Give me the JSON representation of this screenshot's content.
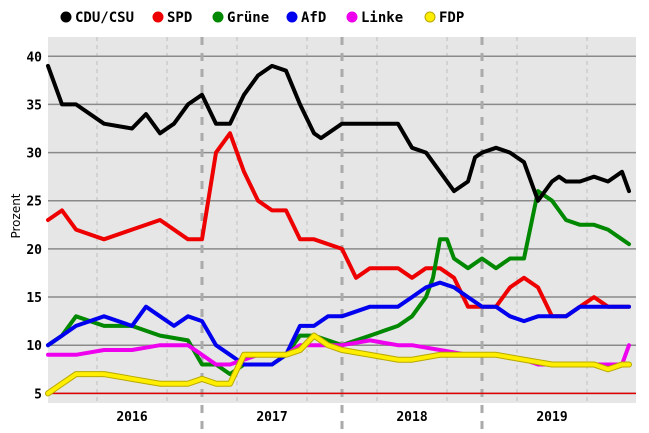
{
  "chart_data": {
    "type": "line",
    "title": "",
    "xlabel": "",
    "ylabel": "Prozent",
    "ylim": [
      4,
      42
    ],
    "yticks": [
      5,
      10,
      15,
      20,
      25,
      30,
      35,
      40
    ],
    "xlim": [
      2015.4,
      2019.6
    ],
    "year_labels": [
      {
        "label": "2016",
        "center": 2016.0
      },
      {
        "label": "2017",
        "center": 2017.0
      },
      {
        "label": "2018",
        "center": 2018.0
      },
      {
        "label": "2019",
        "center": 2019.0
      }
    ],
    "year_boundaries": [
      2016.5,
      2017.5,
      2018.5
    ],
    "quarter_ticks": [
      2015.75,
      2016.25,
      2016.75,
      2017.25,
      2017.75,
      2018.25,
      2018.75,
      2019.25
    ],
    "threshold": {
      "value": 5,
      "color": "#e00000"
    },
    "legend_position": "top-left",
    "series": [
      {
        "name": "CDU/CSU",
        "color": "#000000",
        "x": [
          2015.4,
          2015.5,
          2015.6,
          2015.8,
          2016.0,
          2016.1,
          2016.2,
          2016.3,
          2016.4,
          2016.5,
          2016.6,
          2016.7,
          2016.8,
          2016.9,
          2017.0,
          2017.1,
          2017.2,
          2017.3,
          2017.35,
          2017.5,
          2017.7,
          2017.9,
          2018.0,
          2018.1,
          2018.2,
          2018.3,
          2018.4,
          2018.45,
          2018.5,
          2018.6,
          2018.7,
          2018.8,
          2018.9,
          2019.0,
          2019.05,
          2019.1,
          2019.2,
          2019.3,
          2019.4,
          2019.5,
          2019.55
        ],
        "y": [
          39,
          35,
          35,
          33,
          32.5,
          34,
          32,
          33,
          35,
          36,
          33,
          33,
          36,
          38,
          39,
          38.5,
          35,
          32,
          31.5,
          33,
          33,
          33,
          30.5,
          30,
          28,
          26,
          27,
          29.5,
          30,
          30.5,
          30,
          29,
          25,
          27,
          27.5,
          27,
          27,
          27.5,
          27,
          28,
          26
        ]
      },
      {
        "name": "SPD",
        "color": "#ee0000",
        "x": [
          2015.4,
          2015.5,
          2015.6,
          2015.8,
          2016.0,
          2016.2,
          2016.4,
          2016.5,
          2016.6,
          2016.7,
          2016.8,
          2016.9,
          2017.0,
          2017.1,
          2017.2,
          2017.3,
          2017.5,
          2017.6,
          2017.7,
          2017.9,
          2018.0,
          2018.1,
          2018.2,
          2018.3,
          2018.4,
          2018.5,
          2018.6,
          2018.7,
          2018.8,
          2018.9,
          2019.0,
          2019.1,
          2019.2,
          2019.3,
          2019.4,
          2019.55
        ],
        "y": [
          23,
          24,
          22,
          21,
          22,
          23,
          21,
          21,
          30,
          32,
          28,
          25,
          24,
          24,
          21,
          21,
          20,
          17,
          18,
          18,
          17,
          18,
          18,
          17,
          14,
          14,
          14,
          16,
          17,
          16,
          13,
          13,
          14,
          15,
          14,
          14
        ]
      },
      {
        "name": "Grüne",
        "color": "#008800",
        "x": [
          2015.4,
          2015.5,
          2015.6,
          2015.8,
          2016.0,
          2016.2,
          2016.4,
          2016.5,
          2016.6,
          2016.7,
          2016.8,
          2016.9,
          2017.0,
          2017.1,
          2017.2,
          2017.3,
          2017.5,
          2017.7,
          2017.9,
          2018.0,
          2018.1,
          2018.15,
          2018.2,
          2018.25,
          2018.3,
          2018.4,
          2018.5,
          2018.6,
          2018.7,
          2018.8,
          2018.9,
          2019.0,
          2019.1,
          2019.2,
          2019.3,
          2019.4,
          2019.5,
          2019.55
        ],
        "y": [
          10,
          11,
          13,
          12,
          12,
          11,
          10.5,
          8,
          8,
          7,
          8,
          8,
          8,
          9,
          11,
          11,
          10,
          11,
          12,
          13,
          15,
          17,
          21,
          21,
          19,
          18,
          19,
          18,
          19,
          19,
          26,
          25,
          23,
          22.5,
          22.5,
          22,
          21,
          20.5
        ]
      },
      {
        "name": "AfD",
        "color": "#0000ee",
        "x": [
          2015.4,
          2015.5,
          2015.6,
          2015.8,
          2016.0,
          2016.1,
          2016.2,
          2016.3,
          2016.4,
          2016.5,
          2016.6,
          2016.7,
          2016.8,
          2016.9,
          2017.0,
          2017.1,
          2017.2,
          2017.3,
          2017.4,
          2017.5,
          2017.7,
          2017.9,
          2018.0,
          2018.1,
          2018.2,
          2018.3,
          2018.4,
          2018.5,
          2018.6,
          2018.7,
          2018.8,
          2018.9,
          2019.0,
          2019.1,
          2019.2,
          2019.3,
          2019.4,
          2019.55
        ],
        "y": [
          10,
          11,
          12,
          13,
          12,
          14,
          13,
          12,
          13,
          12.5,
          10,
          9,
          8,
          8,
          8,
          9,
          12,
          12,
          13,
          13,
          14,
          14,
          15,
          16,
          16.5,
          16,
          15,
          14,
          14,
          13,
          12.5,
          13,
          13,
          13,
          14,
          14,
          14,
          14
        ]
      },
      {
        "name": "Linke",
        "color": "#ee00ee",
        "x": [
          2015.4,
          2015.5,
          2015.6,
          2015.8,
          2016.0,
          2016.2,
          2016.4,
          2016.5,
          2016.6,
          2016.7,
          2016.8,
          2016.9,
          2017.0,
          2017.1,
          2017.2,
          2017.3,
          2017.5,
          2017.7,
          2017.9,
          2018.0,
          2018.2,
          2018.4,
          2018.6,
          2018.8,
          2018.9,
          2019.0,
          2019.1,
          2019.2,
          2019.3,
          2019.4,
          2019.5,
          2019.55
        ],
        "y": [
          9,
          9,
          9,
          9.5,
          9.5,
          10,
          10,
          9,
          8,
          8,
          8.5,
          9,
          9,
          9,
          10,
          10,
          10,
          10.5,
          10,
          10,
          9.5,
          9,
          9,
          8.5,
          8,
          8,
          8,
          8,
          8,
          8,
          8,
          10
        ]
      },
      {
        "name": "FDP",
        "color": "#ffee00",
        "x": [
          2015.4,
          2015.5,
          2015.6,
          2015.8,
          2016.0,
          2016.2,
          2016.4,
          2016.5,
          2016.6,
          2016.7,
          2016.8,
          2016.9,
          2017.0,
          2017.1,
          2017.2,
          2017.3,
          2017.4,
          2017.5,
          2017.7,
          2017.9,
          2018.0,
          2018.2,
          2018.4,
          2018.6,
          2018.8,
          2019.0,
          2019.1,
          2019.2,
          2019.3,
          2019.4,
          2019.5,
          2019.55
        ],
        "y": [
          5,
          6,
          7,
          7,
          6.5,
          6,
          6,
          6.5,
          6,
          6,
          9,
          9,
          9,
          9,
          9.5,
          11,
          10,
          9.5,
          9,
          8.5,
          8.5,
          9,
          9,
          9,
          8.5,
          8,
          8,
          8,
          8,
          7.5,
          8,
          8
        ]
      }
    ]
  }
}
